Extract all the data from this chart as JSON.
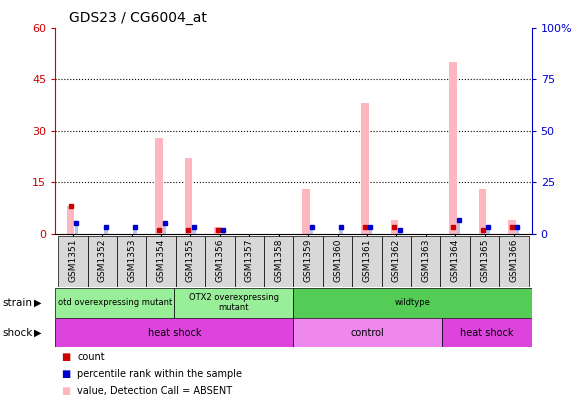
{
  "title": "GDS23 / CG6004_at",
  "samples": [
    "GSM1351",
    "GSM1352",
    "GSM1353",
    "GSM1354",
    "GSM1355",
    "GSM1356",
    "GSM1357",
    "GSM1358",
    "GSM1359",
    "GSM1360",
    "GSM1361",
    "GSM1362",
    "GSM1363",
    "GSM1364",
    "GSM1365",
    "GSM1366"
  ],
  "absent_value": [
    8,
    0,
    0,
    28,
    22,
    2,
    0,
    0,
    13,
    0,
    38,
    4,
    0,
    50,
    13,
    4
  ],
  "absent_rank": [
    3,
    2,
    2,
    3,
    2,
    1,
    0,
    0,
    2,
    2,
    2,
    1,
    0,
    4,
    2,
    2
  ],
  "count_values": [
    8,
    0,
    0,
    1,
    1,
    1,
    0,
    0,
    0,
    0,
    2,
    2,
    0,
    2,
    1,
    2
  ],
  "rank_values": [
    3,
    2,
    2,
    3,
    2,
    1,
    0,
    0,
    2,
    2,
    2,
    1,
    0,
    4,
    2,
    2
  ],
  "ylim_left": [
    0,
    60
  ],
  "ylim_right": [
    0,
    100
  ],
  "yticks_left": [
    0,
    15,
    30,
    45,
    60
  ],
  "yticks_right": [
    0,
    25,
    50,
    75,
    100
  ],
  "strain_groups": [
    {
      "label": "otd overexpressing mutant",
      "start": 0,
      "end": 4,
      "color": "#99ee99"
    },
    {
      "label": "OTX2 overexpressing\nmutant",
      "start": 4,
      "end": 8,
      "color": "#99ee99"
    },
    {
      "label": "wildtype",
      "start": 8,
      "end": 16,
      "color": "#55cc55"
    }
  ],
  "shock_groups": [
    {
      "label": "heat shock",
      "start": 0,
      "end": 8,
      "color": "#dd44dd"
    },
    {
      "label": "control",
      "start": 8,
      "end": 13,
      "color": "#ee88ee"
    },
    {
      "label": "heat shock",
      "start": 13,
      "end": 16,
      "color": "#dd44dd"
    }
  ],
  "bar_color_absent_val": "#ffb6c1",
  "bar_color_absent_rank": "#b8c8e8",
  "dot_color_count": "#cc0000",
  "dot_color_rank": "#0000cc",
  "background_color": "#ffffff",
  "grid_color": "#000000",
  "left_axis_color": "#cc0000",
  "right_axis_color": "#0000cc"
}
